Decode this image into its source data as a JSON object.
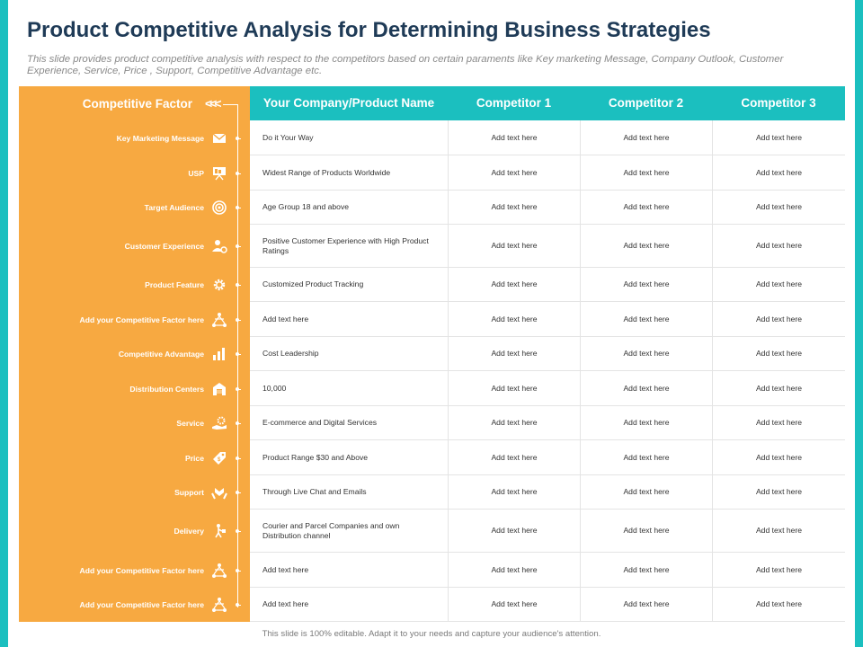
{
  "title": "Product Competitive Analysis for Determining Business Strategies",
  "subtitle": "This slide provides product competitive analysis with respect to the competitors based on certain paraments like Key marketing Message, Company Outlook, Customer Experience, Service, Price ,  Support, Competitive Advantage etc.",
  "colors": {
    "accent_teal": "#1bbfbf",
    "accent_orange": "#f7a941",
    "title_navy": "#1f3b57"
  },
  "factor_header": {
    "label": "Competitive Factor",
    "icon": "chevrons-left-icon",
    "glyph": "<<<"
  },
  "columns": [
    "Your Company/Product Name",
    "Competitor 1",
    "Competitor 2",
    "Competitor 3"
  ],
  "rows": [
    {
      "factor": "Key Marketing Message",
      "icon": "envelope-icon",
      "company": "Do it Your Way",
      "c1": "Add text here",
      "c2": "Add text here",
      "c3": "Add text here"
    },
    {
      "factor": "USP",
      "icon": "presentation-board-icon",
      "company": "Widest Range of Products Worldwide",
      "c1": "Add text here",
      "c2": "Add text here",
      "c3": "Add text here"
    },
    {
      "factor": "Target Audience",
      "icon": "target-icon",
      "company": "Age Group 18 and above",
      "c1": "Add text here",
      "c2": "Add text here",
      "c3": "Add text here"
    },
    {
      "factor": "Customer Experience",
      "icon": "user-gear-icon",
      "company": "Positive Customer Experience with High Product Ratings",
      "c1": "Add text here",
      "c2": "Add text here",
      "c3": "Add text here"
    },
    {
      "factor": "Product Feature",
      "icon": "gear-icon",
      "company": "Customized Product Tracking",
      "c1": "Add text here",
      "c2": "Add text here",
      "c3": "Add text here"
    },
    {
      "factor": "Add  your Competitive Factor here",
      "icon": "network-icon",
      "company": "Add text here",
      "c1": "Add text here",
      "c2": "Add text here",
      "c3": "Add text here"
    },
    {
      "factor": "Competitive Advantage",
      "icon": "bar-chart-icon",
      "company": "Cost Leadership",
      "c1": "Add text here",
      "c2": "Add text here",
      "c3": "Add text here"
    },
    {
      "factor": "Distribution Centers",
      "icon": "warehouse-icon",
      "company": "10,000",
      "c1": "Add text here",
      "c2": "Add text here",
      "c3": "Add text here"
    },
    {
      "factor": "Service",
      "icon": "hand-gear-icon",
      "company": "E-commerce and Digital Services",
      "c1": "Add text here",
      "c2": "Add text here",
      "c3": "Add text here"
    },
    {
      "factor": "Price",
      "icon": "price-tag-icon",
      "company": "Product Range $30 and Above",
      "c1": "Add text here",
      "c2": "Add text here",
      "c3": "Add text here"
    },
    {
      "factor": "Support",
      "icon": "support-hands-icon",
      "company": "Through Live Chat and Emails",
      "c1": "Add text here",
      "c2": "Add text here",
      "c3": "Add text here"
    },
    {
      "factor": "Delivery",
      "icon": "delivery-person-icon",
      "company": "Courier and Parcel Companies and own Distribution channel",
      "c1": "Add text here",
      "c2": "Add text here",
      "c3": "Add text here"
    },
    {
      "factor": "Add  your Competitive Factor here",
      "icon": "network-icon",
      "company": "Add text here",
      "c1": "Add text here",
      "c2": "Add text here",
      "c3": "Add text here"
    },
    {
      "factor": "Add  your Competitive Factor here",
      "icon": "network-icon",
      "company": "Add text here",
      "c1": "Add text here",
      "c2": "Add text here",
      "c3": "Add text here"
    }
  ],
  "footer": "This slide is 100% editable.  Adapt it to your needs and capture your audience's attention."
}
